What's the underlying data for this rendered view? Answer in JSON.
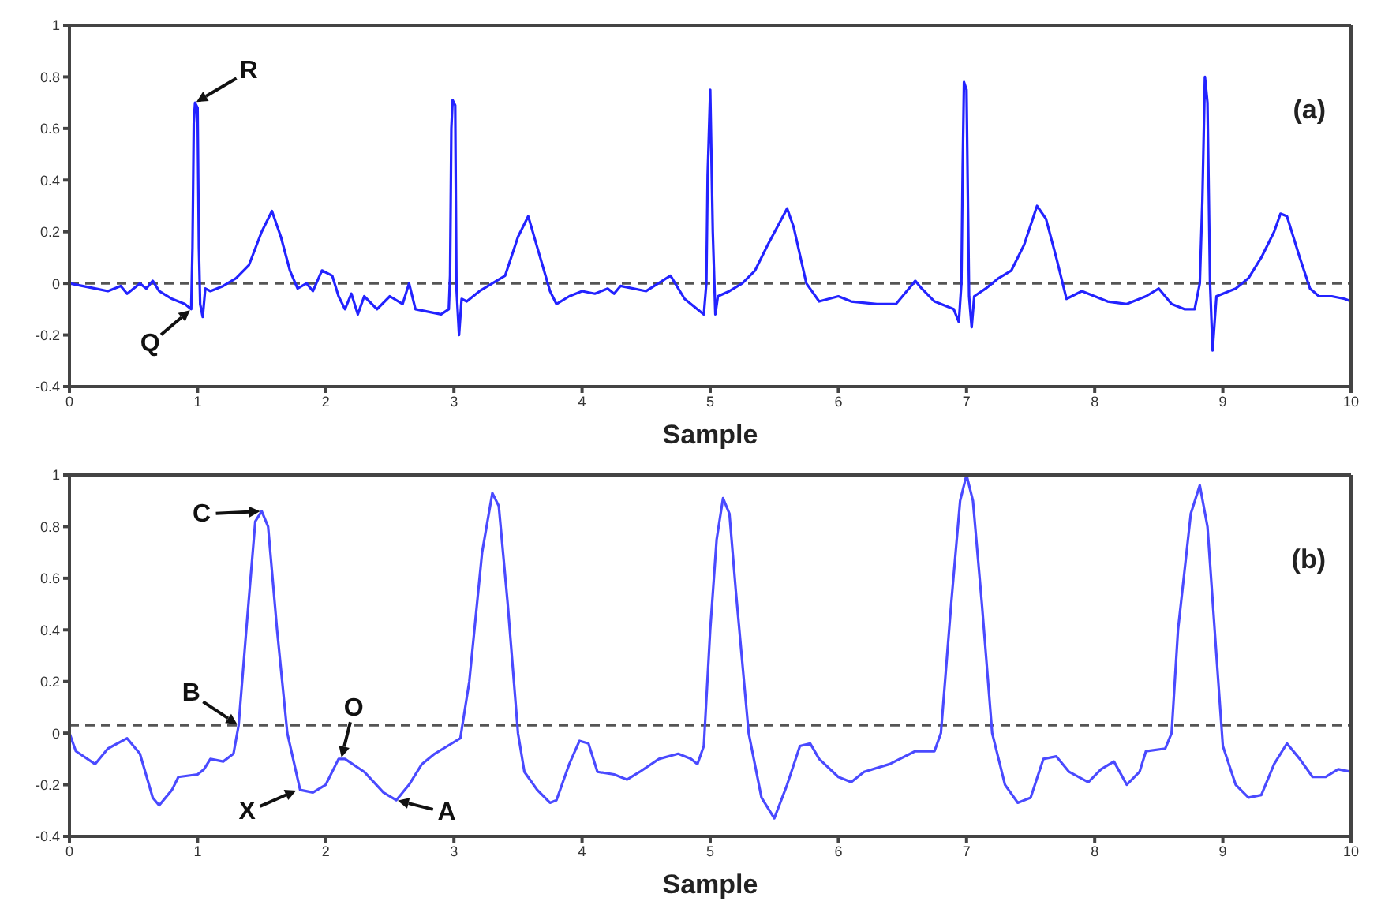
{
  "chart_data": [
    {
      "type": "line",
      "xlabel": "Sample",
      "annotations": [
        "(a)",
        {
          "text": "R",
          "x": 0.98,
          "y": 0.7
        },
        {
          "text": "Q",
          "x": 0.95,
          "y": -0.1
        }
      ],
      "x": [
        0,
        0.1,
        0.2,
        0.3,
        0.4,
        0.45,
        0.55,
        0.6,
        0.65,
        0.7,
        0.8,
        0.9,
        0.95,
        0.96,
        0.97,
        0.98,
        1.0,
        1.01,
        1.02,
        1.04,
        1.06,
        1.1,
        1.2,
        1.3,
        1.4,
        1.5,
        1.58,
        1.65,
        1.72,
        1.78,
        1.85,
        1.9,
        1.97,
        2.05,
        2.1,
        2.15,
        2.2,
        2.25,
        2.3,
        2.4,
        2.5,
        2.6,
        2.65,
        2.7,
        2.8,
        2.9,
        2.96,
        2.97,
        2.98,
        2.99,
        3.01,
        3.02,
        3.04,
        3.06,
        3.1,
        3.2,
        3.3,
        3.4,
        3.5,
        3.58,
        3.65,
        3.75,
        3.8,
        3.9,
        4.0,
        4.1,
        4.2,
        4.25,
        4.3,
        4.5,
        4.69,
        4.8,
        4.95,
        4.97,
        4.98,
        5.0,
        5.02,
        5.04,
        5.06,
        5.15,
        5.25,
        5.35,
        5.45,
        5.6,
        5.65,
        5.75,
        5.85,
        6.0,
        6.1,
        6.3,
        6.45,
        6.55,
        6.6,
        6.65,
        6.75,
        6.9,
        6.94,
        6.96,
        6.97,
        6.98,
        7.0,
        7.02,
        7.04,
        7.06,
        7.15,
        7.25,
        7.35,
        7.45,
        7.55,
        7.62,
        7.7,
        7.78,
        7.9,
        8.0,
        8.1,
        8.25,
        8.4,
        8.5,
        8.6,
        8.7,
        8.78,
        8.82,
        8.84,
        8.86,
        8.88,
        8.9,
        8.92,
        8.95,
        9.0,
        9.1,
        9.2,
        9.3,
        9.4,
        9.45,
        9.5,
        9.6,
        9.68,
        9.75,
        9.85,
        9.95,
        10
      ],
      "series": [
        {
          "color": "#2323ff",
          "values": [
            0,
            -0.01,
            -0.02,
            -0.03,
            -0.01,
            -0.04,
            0.0,
            -0.02,
            0.01,
            -0.03,
            -0.06,
            -0.08,
            -0.1,
            0.14,
            0.62,
            0.7,
            0.68,
            0.14,
            -0.08,
            -0.13,
            -0.02,
            -0.03,
            -0.01,
            0.02,
            0.07,
            0.2,
            0.28,
            0.18,
            0.05,
            -0.02,
            0.0,
            -0.03,
            0.05,
            0.03,
            -0.05,
            -0.1,
            -0.04,
            -0.12,
            -0.05,
            -0.1,
            -0.05,
            -0.08,
            0.0,
            -0.1,
            -0.11,
            -0.12,
            -0.1,
            0.03,
            0.6,
            0.71,
            0.69,
            -0.02,
            -0.2,
            -0.06,
            -0.07,
            -0.03,
            0.0,
            0.03,
            0.18,
            0.26,
            0.14,
            -0.03,
            -0.08,
            -0.05,
            -0.03,
            -0.04,
            -0.02,
            -0.04,
            -0.01,
            -0.03,
            0.03,
            -0.06,
            -0.12,
            0.0,
            0.42,
            0.75,
            0.2,
            -0.12,
            -0.05,
            -0.03,
            0.0,
            0.05,
            0.15,
            0.29,
            0.22,
            0.0,
            -0.07,
            -0.05,
            -0.07,
            -0.08,
            -0.08,
            -0.02,
            0.01,
            -0.02,
            -0.07,
            -0.1,
            -0.15,
            0.0,
            0.45,
            0.78,
            0.75,
            -0.05,
            -0.17,
            -0.05,
            -0.02,
            0.02,
            0.05,
            0.15,
            0.3,
            0.25,
            0.1,
            -0.06,
            -0.03,
            -0.05,
            -0.07,
            -0.08,
            -0.05,
            -0.02,
            -0.08,
            -0.1,
            -0.1,
            0.0,
            0.32,
            0.8,
            0.7,
            0.0,
            -0.26,
            -0.05,
            -0.04,
            -0.02,
            0.02,
            0.1,
            0.2,
            0.27,
            0.26,
            0.1,
            -0.02,
            -0.05,
            -0.05,
            -0.06,
            -0.07
          ]
        }
      ],
      "xlim": [
        0,
        10
      ],
      "xticks": [
        0,
        1,
        2,
        3,
        4,
        5,
        6,
        7,
        8,
        9,
        10
      ],
      "ylim": [
        -0.4,
        1
      ],
      "yticks": [
        -0.4,
        -0.2,
        0,
        0.2,
        0.4,
        0.6,
        0.8,
        1
      ],
      "ref_lines": [
        {
          "axis": "y",
          "value": 0,
          "color": "#555555",
          "line_style": "dashed"
        }
      ],
      "grid": false,
      "legend": false,
      "marker": "none",
      "line_style": "solid"
    },
    {
      "type": "line",
      "xlabel": "Sample",
      "annotations": [
        "(b)",
        {
          "text": "C",
          "x": 1.5,
          "y": 0.86
        },
        {
          "text": "B",
          "x": 1.32,
          "y": 0.03
        },
        {
          "text": "X",
          "x": 1.78,
          "y": -0.22
        },
        {
          "text": "O",
          "x": 2.12,
          "y": -0.1
        },
        {
          "text": "A",
          "x": 2.55,
          "y": -0.26
        }
      ],
      "x": [
        0,
        0.05,
        0.2,
        0.3,
        0.45,
        0.55,
        0.65,
        0.7,
        0.8,
        0.85,
        1.0,
        1.05,
        1.1,
        1.2,
        1.28,
        1.32,
        1.38,
        1.45,
        1.5,
        1.55,
        1.62,
        1.7,
        1.8,
        1.9,
        2.0,
        2.1,
        2.15,
        2.3,
        2.45,
        2.55,
        2.65,
        2.75,
        2.85,
        2.95,
        3.05,
        3.12,
        3.22,
        3.3,
        3.35,
        3.42,
        3.5,
        3.55,
        3.65,
        3.75,
        3.8,
        3.9,
        3.98,
        4.05,
        4.12,
        4.25,
        4.35,
        4.45,
        4.6,
        4.75,
        4.85,
        4.9,
        4.95,
        5.0,
        5.05,
        5.1,
        5.15,
        5.2,
        5.3,
        5.4,
        5.5,
        5.6,
        5.7,
        5.78,
        5.85,
        6.0,
        6.1,
        6.2,
        6.4,
        6.6,
        6.75,
        6.8,
        6.88,
        6.95,
        7.0,
        7.05,
        7.12,
        7.2,
        7.3,
        7.4,
        7.5,
        7.6,
        7.7,
        7.8,
        7.95,
        8.05,
        8.15,
        8.25,
        8.35,
        8.4,
        8.55,
        8.6,
        8.65,
        8.75,
        8.82,
        8.88,
        8.95,
        9.0,
        9.1,
        9.2,
        9.3,
        9.4,
        9.5,
        9.6,
        9.7,
        9.8,
        9.9,
        10
      ],
      "series": [
        {
          "color": "#4a4aff",
          "values": [
            0.0,
            -0.07,
            -0.12,
            -0.06,
            -0.02,
            -0.08,
            -0.25,
            -0.28,
            -0.22,
            -0.17,
            -0.16,
            -0.14,
            -0.1,
            -0.11,
            -0.08,
            0.03,
            0.4,
            0.82,
            0.86,
            0.8,
            0.4,
            0.0,
            -0.22,
            -0.23,
            -0.2,
            -0.1,
            -0.1,
            -0.15,
            -0.23,
            -0.26,
            -0.2,
            -0.12,
            -0.08,
            -0.05,
            -0.02,
            0.2,
            0.7,
            0.93,
            0.88,
            0.5,
            0.0,
            -0.15,
            -0.22,
            -0.27,
            -0.26,
            -0.12,
            -0.03,
            -0.04,
            -0.15,
            -0.16,
            -0.18,
            -0.15,
            -0.1,
            -0.08,
            -0.1,
            -0.12,
            -0.05,
            0.4,
            0.75,
            0.91,
            0.85,
            0.55,
            0.0,
            -0.25,
            -0.33,
            -0.2,
            -0.05,
            -0.04,
            -0.1,
            -0.17,
            -0.19,
            -0.15,
            -0.12,
            -0.07,
            -0.07,
            0.0,
            0.5,
            0.9,
            1.0,
            0.9,
            0.5,
            0.0,
            -0.2,
            -0.27,
            -0.25,
            -0.1,
            -0.09,
            -0.15,
            -0.19,
            -0.14,
            -0.11,
            -0.2,
            -0.15,
            -0.07,
            -0.06,
            0.0,
            0.4,
            0.85,
            0.96,
            0.8,
            0.3,
            -0.05,
            -0.2,
            -0.25,
            -0.24,
            -0.12,
            -0.04,
            -0.1,
            -0.17,
            -0.17,
            -0.14,
            -0.15
          ]
        }
      ],
      "xlim": [
        0,
        10
      ],
      "xticks": [
        0,
        1,
        2,
        3,
        4,
        5,
        6,
        7,
        8,
        9,
        10
      ],
      "ylim": [
        -0.4,
        1
      ],
      "yticks": [
        -0.4,
        -0.2,
        0,
        0.2,
        0.4,
        0.6,
        0.8,
        1
      ],
      "ref_lines": [
        {
          "axis": "y",
          "value": 0.03,
          "color": "#555555",
          "line_style": "dashed"
        }
      ],
      "grid": false,
      "legend": false,
      "marker": "none",
      "line_style": "solid"
    }
  ]
}
